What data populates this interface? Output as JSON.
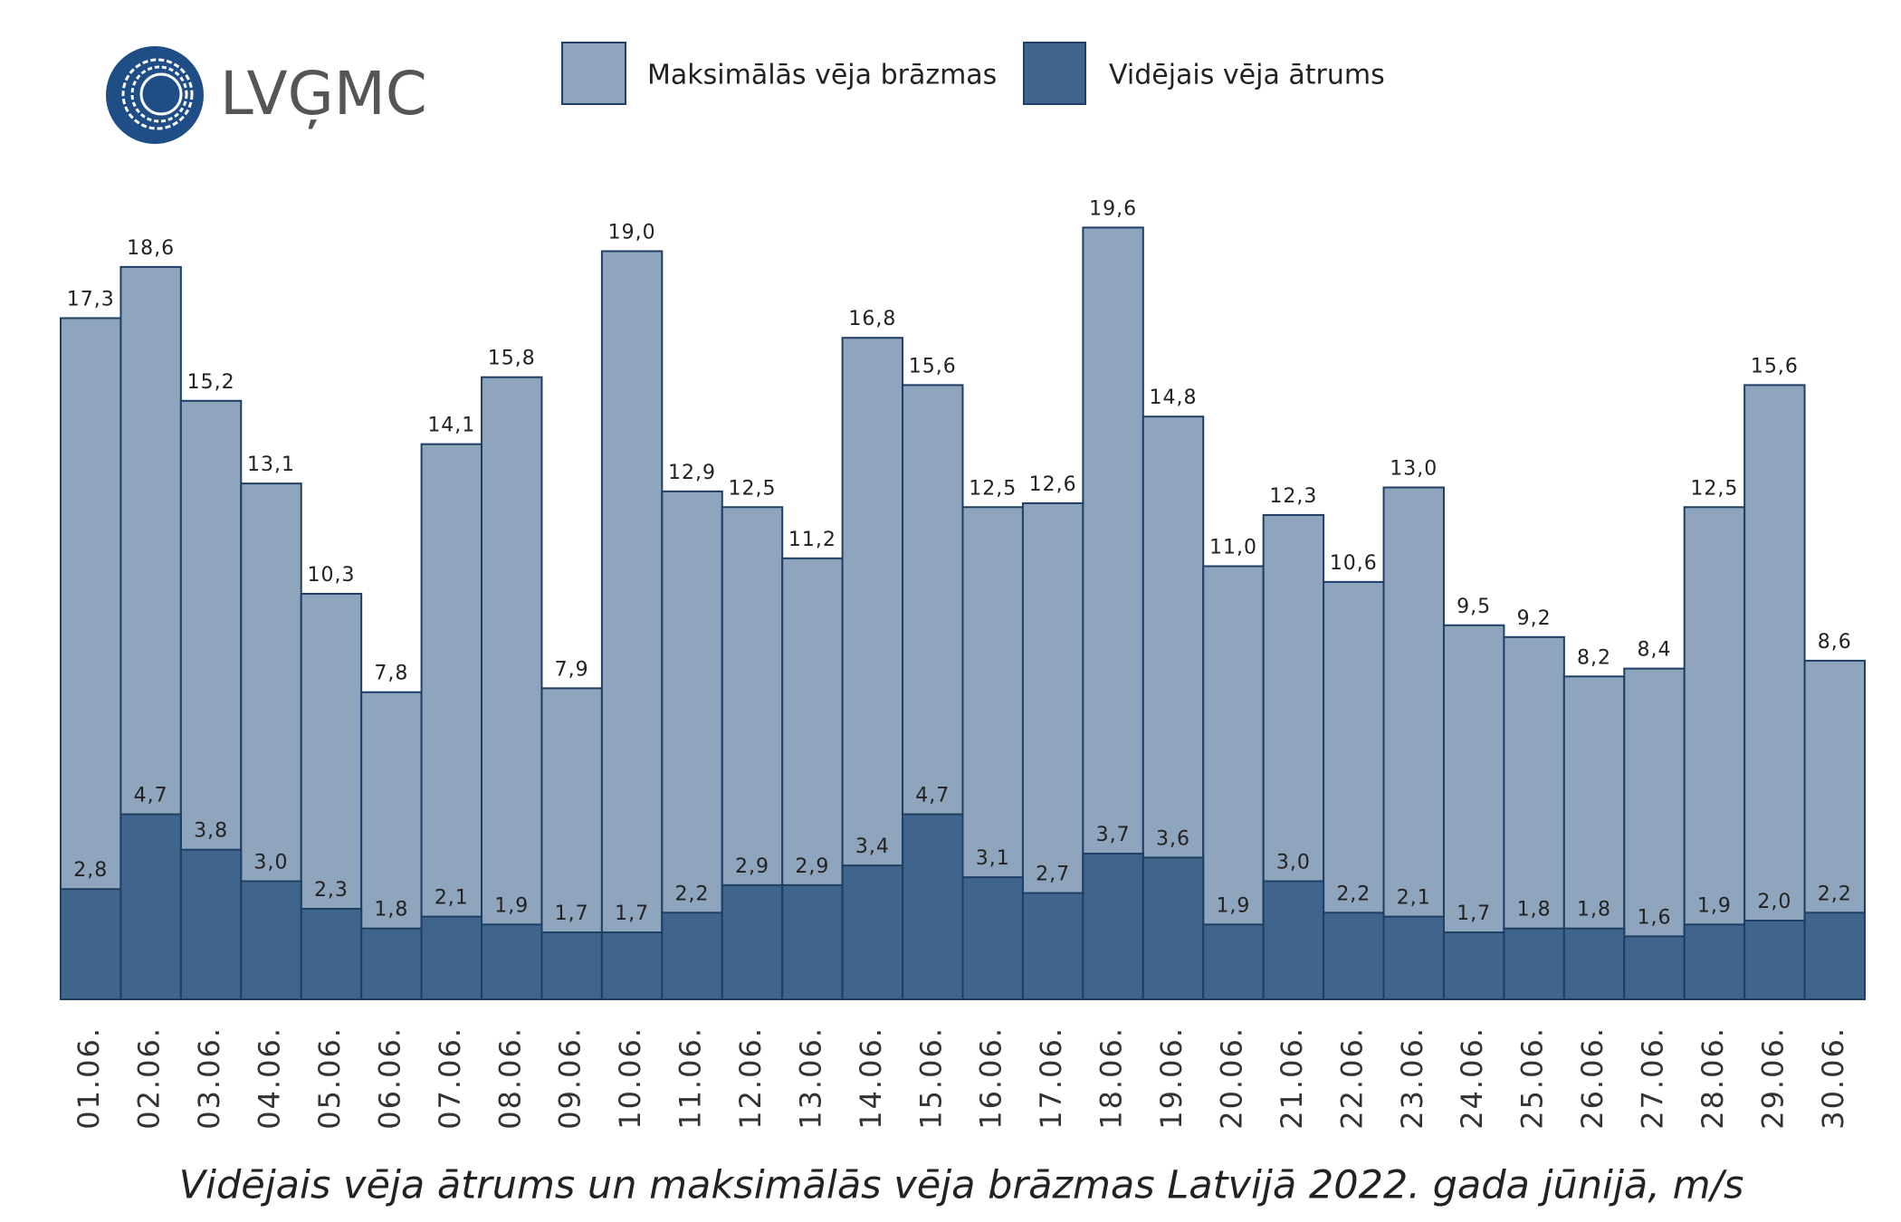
{
  "chart_data": {
    "type": "bar",
    "overlay": true,
    "logo": "LVĢMC",
    "title": "Vidējais vēja ātrums un maksimālās vēja brāzmas Latvijā 2022. gada jūnijā, m/s",
    "categories": [
      "01.06.",
      "02.06.",
      "03.06.",
      "04.06.",
      "05.06.",
      "06.06.",
      "07.06.",
      "08.06.",
      "09.06.",
      "10.06.",
      "11.06.",
      "12.06.",
      "13.06.",
      "14.06.",
      "15.06.",
      "16.06.",
      "17.06.",
      "18.06.",
      "19.06.",
      "20.06.",
      "21.06.",
      "22.06.",
      "23.06.",
      "24.06.",
      "25.06.",
      "26.06.",
      "27.06.",
      "28.06.",
      "29.06.",
      "30.06."
    ],
    "ylim": [
      0,
      20
    ],
    "series": [
      {
        "name": "Maksimālās vēja brāzmas",
        "color": "#8fa5bd",
        "values": [
          17.3,
          18.6,
          15.2,
          13.1,
          10.3,
          7.8,
          14.1,
          15.8,
          7.9,
          19.0,
          12.9,
          12.5,
          11.2,
          16.8,
          15.6,
          12.5,
          12.6,
          19.6,
          14.8,
          11.0,
          12.3,
          10.6,
          13.0,
          9.5,
          9.2,
          8.2,
          8.4,
          12.5,
          15.6,
          8.6
        ],
        "value_labels": [
          "17,3",
          "18,6",
          "15,2",
          "13,1",
          "10,3",
          "7,8",
          "14,1",
          "15,8",
          "7,9",
          "19,0",
          "12,9",
          "12,5",
          "11,2",
          "16,8",
          "15,6",
          "12,5",
          "12,6",
          "19,6",
          "14,8",
          "11,0",
          "12,3",
          "10,6",
          "13,0",
          "9,5",
          "9,2",
          "8,2",
          "8,4",
          "12,5",
          "15,6",
          "8,6"
        ]
      },
      {
        "name": "Vidējais vēja ātrums",
        "color": "#3f658c",
        "values": [
          2.8,
          4.7,
          3.8,
          3.0,
          2.3,
          1.8,
          2.1,
          1.9,
          1.7,
          1.7,
          2.2,
          2.9,
          2.9,
          3.4,
          4.7,
          3.1,
          2.7,
          3.7,
          3.6,
          1.9,
          3.0,
          2.2,
          2.1,
          1.7,
          1.8,
          1.8,
          1.6,
          1.9,
          2.0,
          2.2
        ],
        "value_labels": [
          "2,8",
          "4,7",
          "3,8",
          "3,0",
          "2,3",
          "1,8",
          "2,1",
          "1,9",
          "1,7",
          "1,7",
          "2,2",
          "2,9",
          "2,9",
          "3,4",
          "4,7",
          "3,1",
          "2,7",
          "3,7",
          "3,6",
          "1,9",
          "3,0",
          "2,2",
          "2,1",
          "1,7",
          "1,8",
          "1,8",
          "1,6",
          "1,9",
          "2,0",
          "2,2"
        ]
      }
    ]
  }
}
